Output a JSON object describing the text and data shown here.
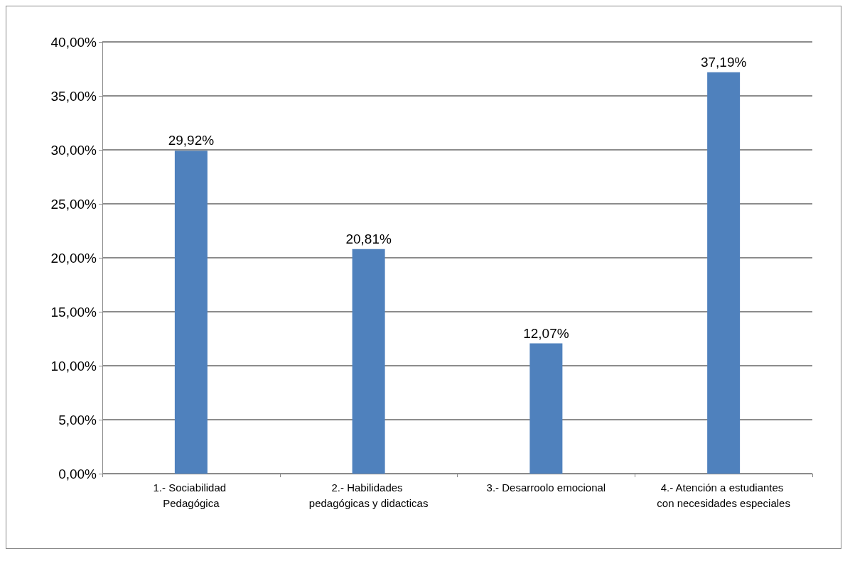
{
  "chart_data": {
    "type": "bar",
    "categories": [
      "1.- Sociabilidad Pedagógica",
      "2.- Habilidades pedagógicas y didacticas",
      "3.- Desarroolo emocional",
      "4.- Atención a estudiantes con necesidades especiales"
    ],
    "values": [
      29.92,
      20.81,
      12.07,
      37.19
    ],
    "value_labels": [
      "29,92%",
      "20,81%",
      "12,07%",
      "37,19%"
    ],
    "color": "#4f81bd",
    "ylim": [
      0,
      40
    ],
    "yticks": [
      {
        "value": 0,
        "label": "0,00%"
      },
      {
        "value": 5,
        "label": "5,00%"
      },
      {
        "value": 10,
        "label": "10,00%"
      },
      {
        "value": 15,
        "label": "15,00%"
      },
      {
        "value": 20,
        "label": "20,00%"
      },
      {
        "value": 25,
        "label": "25,00%"
      },
      {
        "value": 30,
        "label": "30,00%"
      },
      {
        "value": 35,
        "label": "35,00%"
      },
      {
        "value": 40,
        "label": "40,00%"
      }
    ],
    "grid": "y"
  }
}
